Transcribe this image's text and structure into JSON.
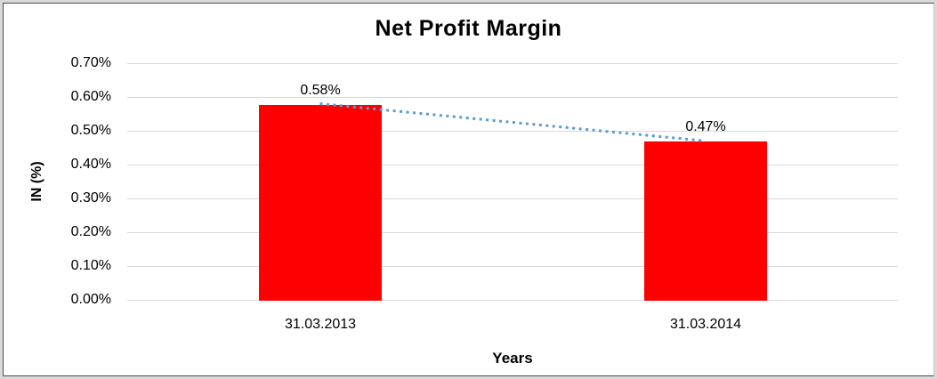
{
  "chart_title": "Net Profit Margin",
  "chart_data": {
    "type": "bar",
    "title": "Net Profit Margin",
    "categories": [
      "31.03.2013",
      "31.03.2014"
    ],
    "values": [
      0.58,
      0.47
    ],
    "data_labels": [
      "0.58%",
      "0.47%"
    ],
    "xlabel": "Years",
    "ylabel": "IN (%)",
    "ylim": [
      0,
      0.7
    ],
    "ytick_labels": [
      "0.70%",
      "0.60%",
      "0.50%",
      "0.40%",
      "0.30%",
      "0.20%",
      "0.10%",
      "0.00%"
    ],
    "grid": true,
    "legend": false,
    "bar_color": "#ff0000",
    "trendline": {
      "type": "linear",
      "style": "dotted",
      "color": "#5b9bd5"
    },
    "gridline_color": "#d9d9d9"
  }
}
